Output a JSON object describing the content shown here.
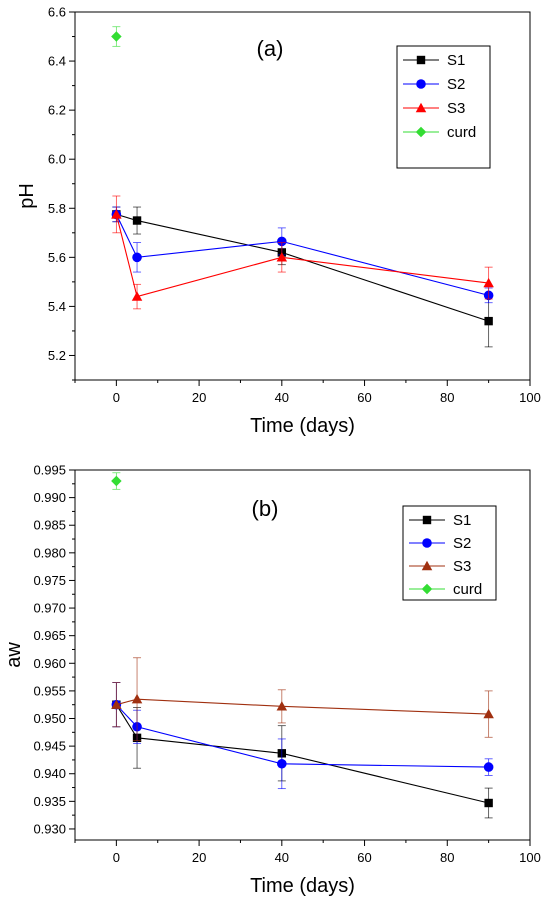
{
  "chart_data": [
    {
      "type": "scatter",
      "panel_label": "(a)",
      "xlabel": "Time (days)",
      "ylabel": "pH",
      "xlim": [
        -10,
        100
      ],
      "ylim": [
        5.1,
        6.6
      ],
      "xticks": [
        0,
        20,
        40,
        60,
        80,
        100
      ],
      "yticks": [
        5.2,
        5.4,
        5.6,
        5.8,
        6.0,
        6.2,
        6.4,
        6.6
      ],
      "ytick_labels": [
        "5.2",
        "5.4",
        "5.6",
        "5.8",
        "6.0",
        "6.2",
        "6.4",
        "6.6"
      ],
      "grid": false,
      "legend": "top-right",
      "series": [
        {
          "name": "S1",
          "color": "#000000",
          "marker": "square",
          "x": [
            0,
            5,
            40,
            90
          ],
          "y": [
            5.775,
            5.75,
            5.62,
            5.34
          ],
          "err": [
            0.03,
            0.055,
            0.05,
            0.105
          ]
        },
        {
          "name": "S2",
          "color": "#0000ff",
          "marker": "circle",
          "x": [
            0,
            5,
            40,
            90
          ],
          "y": [
            5.775,
            5.6,
            5.665,
            5.445
          ],
          "err": [
            0.03,
            0.06,
            0.055,
            0.03
          ]
        },
        {
          "name": "S3",
          "color": "#ff0000",
          "marker": "triangle",
          "x": [
            0,
            5,
            40,
            90
          ],
          "y": [
            5.775,
            5.44,
            5.6,
            5.495
          ],
          "err": [
            0.075,
            0.05,
            0.06,
            0.065
          ]
        },
        {
          "name": "curd",
          "color": "#33dd33",
          "marker": "diamond",
          "x": [
            0
          ],
          "y": [
            6.5
          ],
          "err": [
            0.04
          ]
        }
      ]
    },
    {
      "type": "scatter",
      "panel_label": "(b)",
      "xlabel": "Time (days)",
      "ylabel": "aw",
      "xlim": [
        -10,
        100
      ],
      "ylim": [
        0.928,
        0.995
      ],
      "xticks": [
        0,
        20,
        40,
        60,
        80,
        100
      ],
      "yticks": [
        0.93,
        0.935,
        0.94,
        0.945,
        0.95,
        0.955,
        0.96,
        0.965,
        0.97,
        0.975,
        0.98,
        0.985,
        0.99,
        0.995
      ],
      "ytick_labels": [
        "0.930",
        "0.935",
        "0.940",
        "0.945",
        "0.950",
        "0.955",
        "0.960",
        "0.965",
        "0.970",
        "0.975",
        "0.980",
        "0.985",
        "0.990",
        "0.995"
      ],
      "grid": false,
      "legend": "top-right",
      "series": [
        {
          "name": "S1",
          "color": "#000000",
          "marker": "square",
          "x": [
            0,
            5,
            40,
            90
          ],
          "y": [
            0.9525,
            0.9465,
            0.9437,
            0.9347
          ],
          "err": [
            0.004,
            0.0055,
            0.005,
            0.0027
          ]
        },
        {
          "name": "S2",
          "color": "#0000ff",
          "marker": "circle",
          "x": [
            0,
            5,
            40,
            90
          ],
          "y": [
            0.9525,
            0.9485,
            0.9418,
            0.9412
          ],
          "err": [
            0.004,
            0.003,
            0.0045,
            0.0015
          ]
        },
        {
          "name": "S3",
          "color": "#a03010",
          "marker": "triangle",
          "x": [
            0,
            5,
            40,
            90
          ],
          "y": [
            0.9525,
            0.9535,
            0.9522,
            0.9508
          ],
          "err": [
            0.004,
            0.0075,
            0.003,
            0.0042
          ]
        },
        {
          "name": "curd",
          "color": "#33dd33",
          "marker": "diamond",
          "x": [
            0
          ],
          "y": [
            0.993
          ],
          "err": [
            0.0015
          ]
        }
      ]
    }
  ]
}
